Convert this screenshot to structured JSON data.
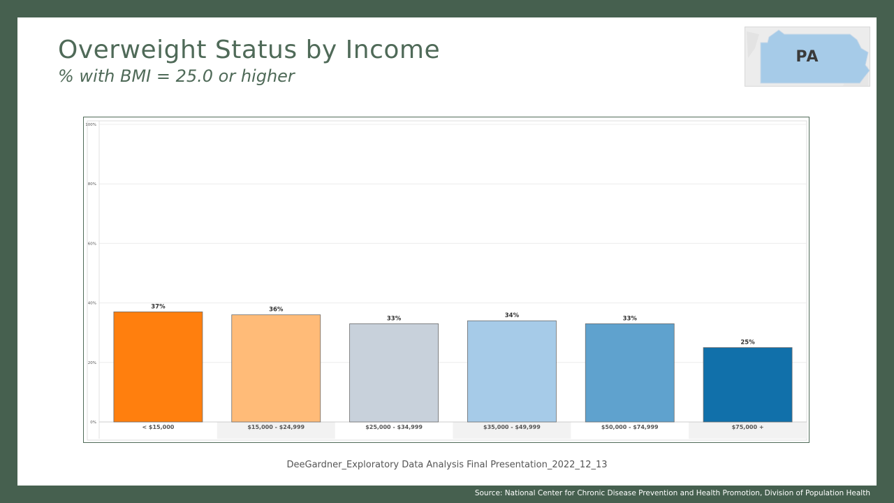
{
  "slide": {
    "title": "Overweight Status by Income",
    "subtitle": "% with BMI =  25.0 or higher",
    "state_badge": "PA",
    "footer_note": "DeeGardner_Exploratory Data Analysis Final Presentation_2022_12_13",
    "source": "Source: National Center for Chronic Disease Prevention and Health Promotion, Division of Population Health"
  },
  "chart_data": {
    "type": "bar",
    "categories": [
      "< $15,000",
      "$15,000 - $24,999",
      "$25,000 - $34,999",
      "$35,000 - $49,999",
      "$50,000 - $74,999",
      "$75,000 +"
    ],
    "values": [
      37,
      36,
      33,
      34,
      33,
      25
    ],
    "value_labels": [
      "37%",
      "36%",
      "33%",
      "34%",
      "33%",
      "25%"
    ],
    "bar_colors": [
      "#ff7f0e",
      "#ffbb78",
      "#c8d1db",
      "#a6cbe8",
      "#5fa2ce",
      "#1170aa"
    ],
    "title": "",
    "xlabel": "",
    "ylabel": "",
    "ylim": [
      0,
      100
    ],
    "yticks": [
      0,
      20,
      40,
      60,
      80,
      100
    ],
    "ytick_labels": [
      "0%",
      "20%",
      "40%",
      "60%",
      "80%",
      "100%"
    ],
    "grid": true,
    "legend": "none"
  }
}
